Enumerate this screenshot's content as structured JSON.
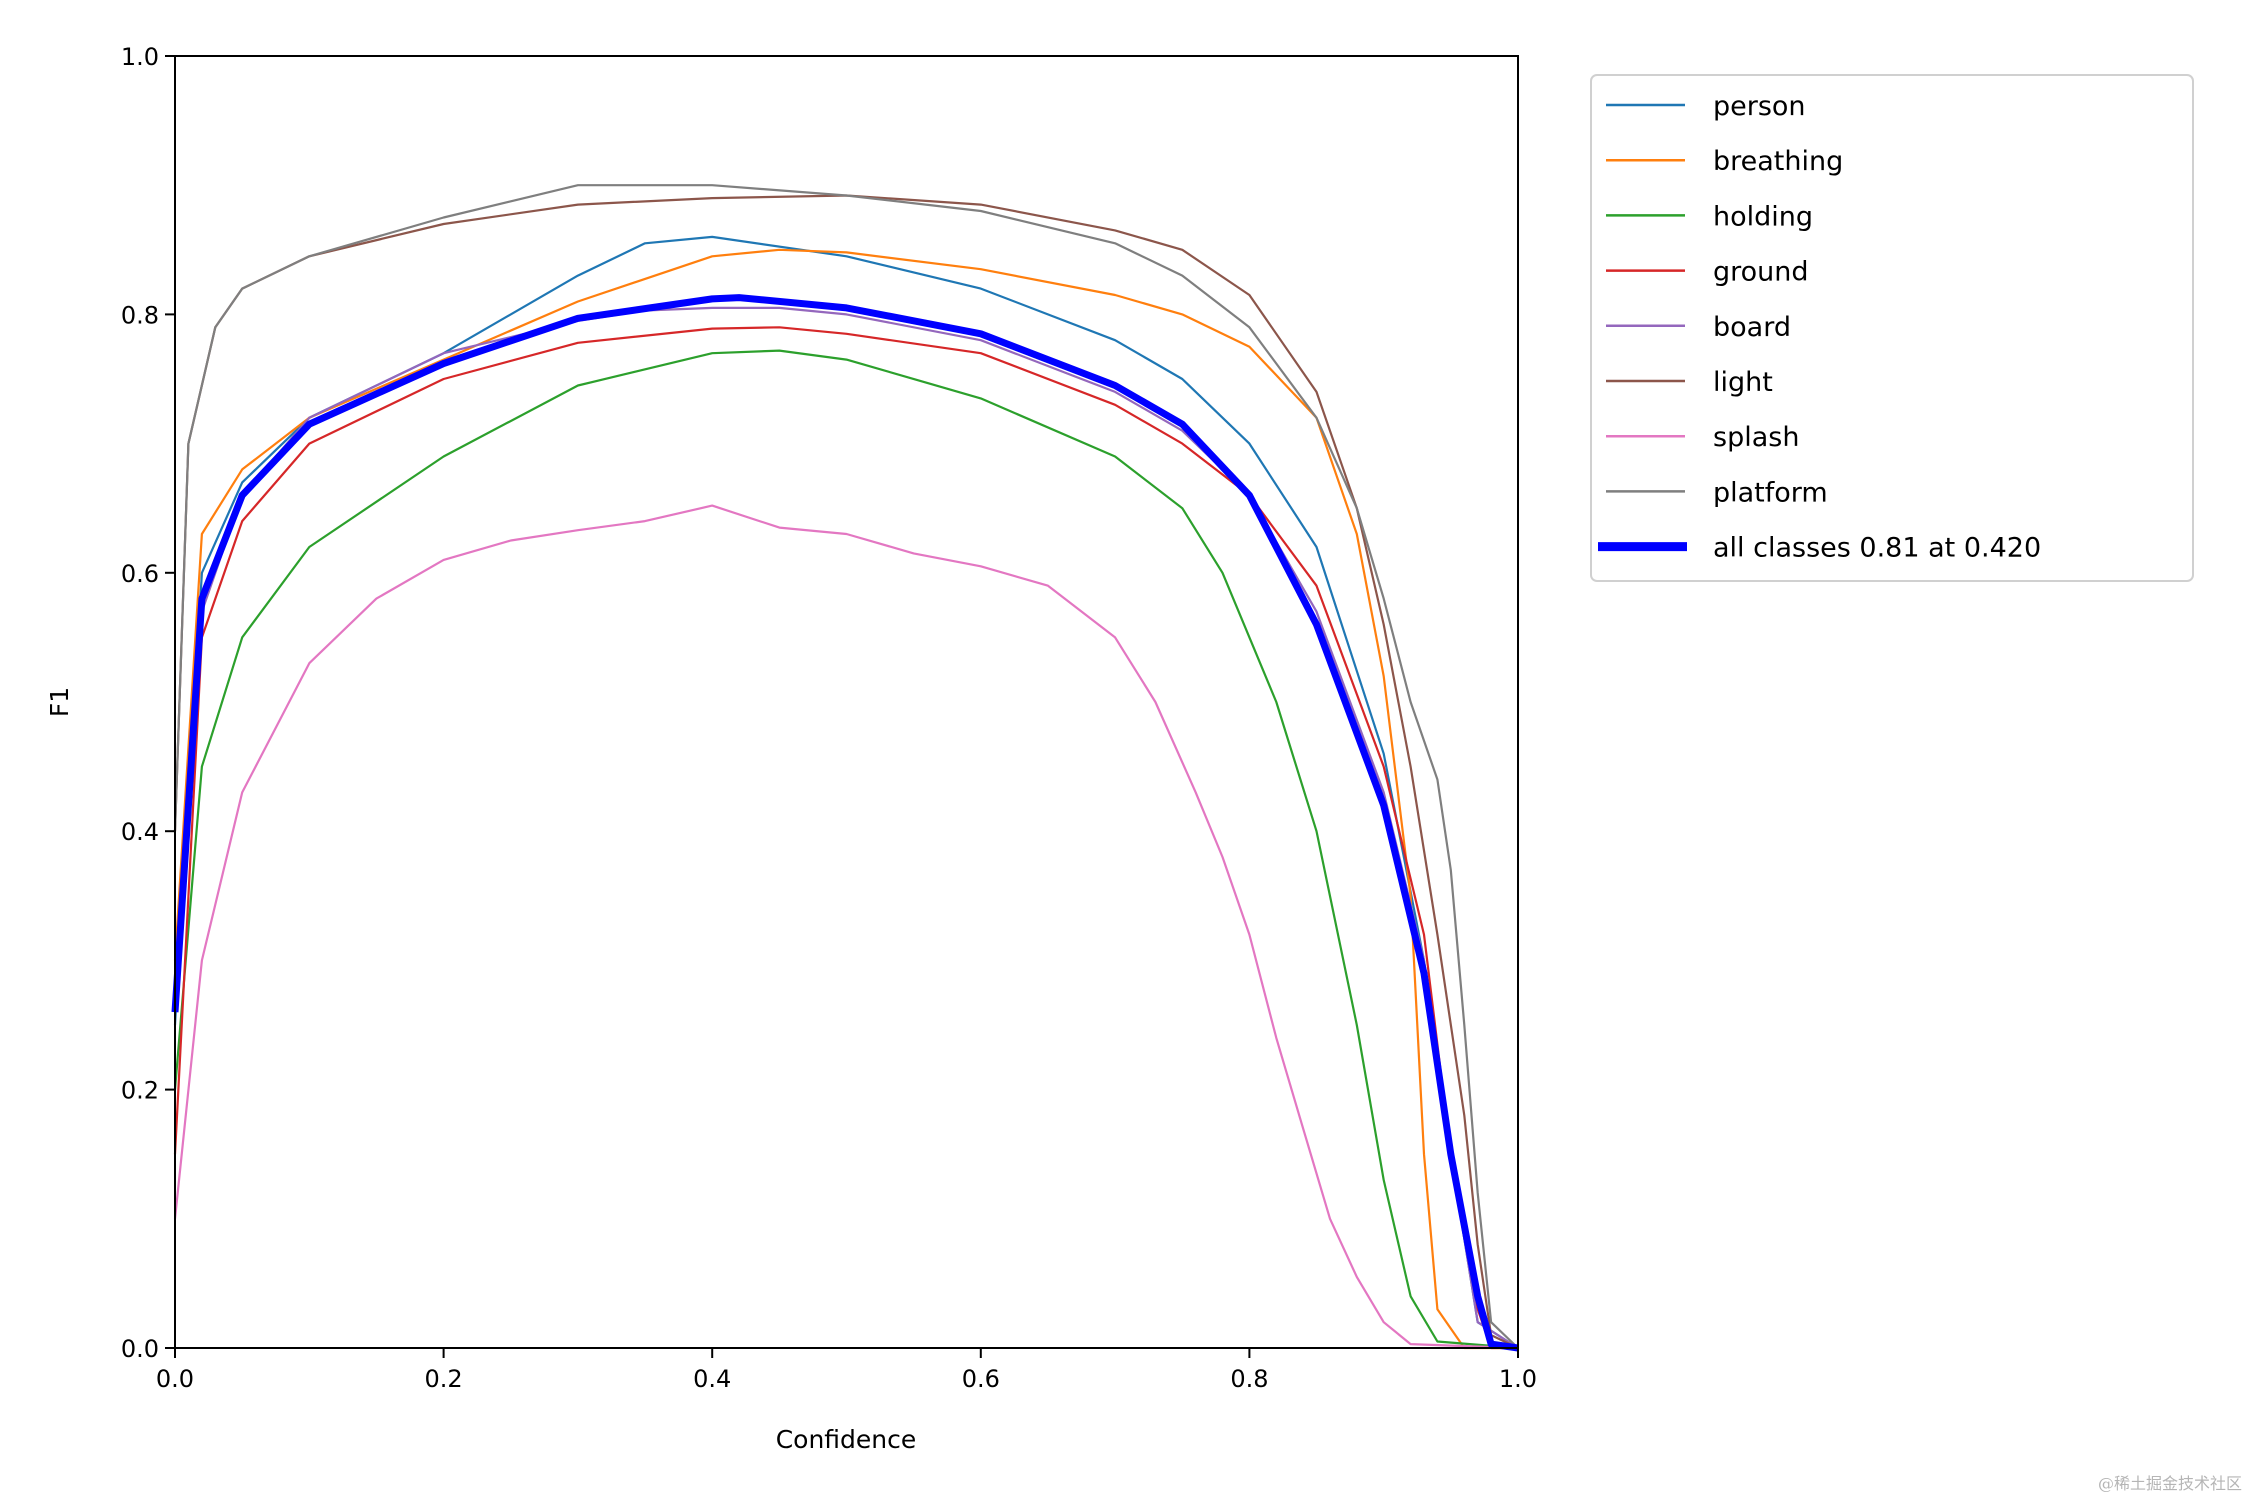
{
  "chart_data": {
    "type": "line",
    "title": "",
    "xlabel": "Confidence",
    "ylabel": "F1",
    "xlim": [
      0,
      1
    ],
    "ylim": [
      0,
      1
    ],
    "xticks": [
      "0.0",
      "0.2",
      "0.4",
      "0.6",
      "0.8",
      "1.0"
    ],
    "yticks": [
      "0.0",
      "0.2",
      "0.4",
      "0.6",
      "0.8",
      "1.0"
    ],
    "grid": false,
    "legend_position": "outside-top-right",
    "series": [
      {
        "name": "person",
        "color": "#1f77b4",
        "x": [
          0,
          0.02,
          0.05,
          0.1,
          0.2,
          0.3,
          0.35,
          0.4,
          0.5,
          0.6,
          0.7,
          0.75,
          0.8,
          0.85,
          0.9,
          0.93,
          0.95,
          0.97,
          1.0
        ],
        "y": [
          0.25,
          0.6,
          0.67,
          0.72,
          0.77,
          0.83,
          0.855,
          0.86,
          0.845,
          0.82,
          0.78,
          0.75,
          0.7,
          0.62,
          0.46,
          0.3,
          0.15,
          0.02,
          0
        ]
      },
      {
        "name": "breathing",
        "color": "#ff7f0e",
        "x": [
          0,
          0.02,
          0.05,
          0.1,
          0.2,
          0.3,
          0.4,
          0.45,
          0.5,
          0.6,
          0.7,
          0.75,
          0.8,
          0.85,
          0.88,
          0.9,
          0.92,
          0.93,
          0.94,
          0.96,
          1.0
        ],
        "y": [
          0.3,
          0.63,
          0.68,
          0.72,
          0.765,
          0.81,
          0.845,
          0.85,
          0.848,
          0.835,
          0.815,
          0.8,
          0.775,
          0.72,
          0.63,
          0.52,
          0.35,
          0.15,
          0.03,
          0,
          0
        ]
      },
      {
        "name": "holding",
        "color": "#2ca02c",
        "x": [
          0,
          0.02,
          0.05,
          0.1,
          0.2,
          0.3,
          0.4,
          0.45,
          0.5,
          0.6,
          0.7,
          0.75,
          0.78,
          0.82,
          0.85,
          0.88,
          0.9,
          0.92,
          0.94,
          1.0
        ],
        "y": [
          0.2,
          0.45,
          0.55,
          0.62,
          0.69,
          0.745,
          0.77,
          0.772,
          0.765,
          0.735,
          0.69,
          0.65,
          0.6,
          0.5,
          0.4,
          0.25,
          0.13,
          0.04,
          0.005,
          0
        ]
      },
      {
        "name": "ground",
        "color": "#d62728",
        "x": [
          0,
          0.02,
          0.05,
          0.1,
          0.2,
          0.3,
          0.4,
          0.45,
          0.5,
          0.6,
          0.7,
          0.75,
          0.8,
          0.85,
          0.9,
          0.93,
          0.95,
          0.97,
          0.98,
          1.0
        ],
        "y": [
          0.15,
          0.55,
          0.64,
          0.7,
          0.75,
          0.778,
          0.789,
          0.79,
          0.785,
          0.77,
          0.73,
          0.7,
          0.66,
          0.59,
          0.45,
          0.32,
          0.15,
          0.03,
          0,
          0
        ]
      },
      {
        "name": "board",
        "color": "#9467bd",
        "x": [
          0,
          0.02,
          0.05,
          0.1,
          0.2,
          0.3,
          0.35,
          0.4,
          0.45,
          0.5,
          0.6,
          0.7,
          0.75,
          0.8,
          0.85,
          0.9,
          0.93,
          0.95,
          0.97,
          1.0
        ],
        "y": [
          0.28,
          0.57,
          0.66,
          0.72,
          0.77,
          0.795,
          0.803,
          0.805,
          0.805,
          0.8,
          0.78,
          0.74,
          0.71,
          0.66,
          0.57,
          0.43,
          0.3,
          0.15,
          0.02,
          0
        ]
      },
      {
        "name": "light",
        "color": "#8c564b",
        "x": [
          0,
          0.01,
          0.03,
          0.05,
          0.1,
          0.2,
          0.3,
          0.4,
          0.5,
          0.6,
          0.7,
          0.75,
          0.8,
          0.85,
          0.88,
          0.9,
          0.92,
          0.94,
          0.96,
          0.97,
          0.98,
          1.0
        ],
        "y": [
          0.4,
          0.7,
          0.79,
          0.82,
          0.845,
          0.87,
          0.885,
          0.89,
          0.892,
          0.885,
          0.865,
          0.85,
          0.815,
          0.74,
          0.65,
          0.56,
          0.45,
          0.32,
          0.18,
          0.08,
          0.01,
          0
        ]
      },
      {
        "name": "splash",
        "color": "#e377c2",
        "x": [
          0,
          0.02,
          0.05,
          0.1,
          0.15,
          0.2,
          0.25,
          0.3,
          0.35,
          0.4,
          0.45,
          0.5,
          0.55,
          0.6,
          0.65,
          0.7,
          0.73,
          0.76,
          0.78,
          0.8,
          0.82,
          0.84,
          0.86,
          0.88,
          0.9,
          0.92,
          1.0
        ],
        "y": [
          0.1,
          0.3,
          0.43,
          0.53,
          0.58,
          0.61,
          0.625,
          0.633,
          0.64,
          0.652,
          0.635,
          0.63,
          0.615,
          0.605,
          0.59,
          0.55,
          0.5,
          0.43,
          0.38,
          0.32,
          0.24,
          0.17,
          0.1,
          0.055,
          0.02,
          0.003,
          0
        ]
      },
      {
        "name": "platform",
        "color": "#7f7f7f",
        "x": [
          0,
          0.01,
          0.03,
          0.05,
          0.1,
          0.2,
          0.3,
          0.4,
          0.5,
          0.6,
          0.7,
          0.75,
          0.8,
          0.85,
          0.88,
          0.9,
          0.92,
          0.94,
          0.95,
          0.96,
          0.97,
          0.98,
          1.0
        ],
        "y": [
          0.4,
          0.7,
          0.79,
          0.82,
          0.845,
          0.875,
          0.9,
          0.9,
          0.892,
          0.88,
          0.855,
          0.83,
          0.79,
          0.72,
          0.65,
          0.58,
          0.5,
          0.44,
          0.37,
          0.25,
          0.12,
          0.02,
          0
        ]
      },
      {
        "name": "all classes 0.81 at 0.420",
        "color": "#0000ff",
        "bold": true,
        "x": [
          0,
          0.02,
          0.05,
          0.1,
          0.2,
          0.3,
          0.4,
          0.42,
          0.5,
          0.6,
          0.7,
          0.75,
          0.8,
          0.85,
          0.9,
          0.93,
          0.95,
          0.97,
          0.98,
          1.0
        ],
        "y": [
          0.26,
          0.58,
          0.66,
          0.715,
          0.762,
          0.797,
          0.812,
          0.813,
          0.805,
          0.785,
          0.745,
          0.715,
          0.66,
          0.56,
          0.42,
          0.29,
          0.15,
          0.04,
          0.003,
          0
        ]
      }
    ]
  },
  "watermark": "@稀土掘金技术社区"
}
